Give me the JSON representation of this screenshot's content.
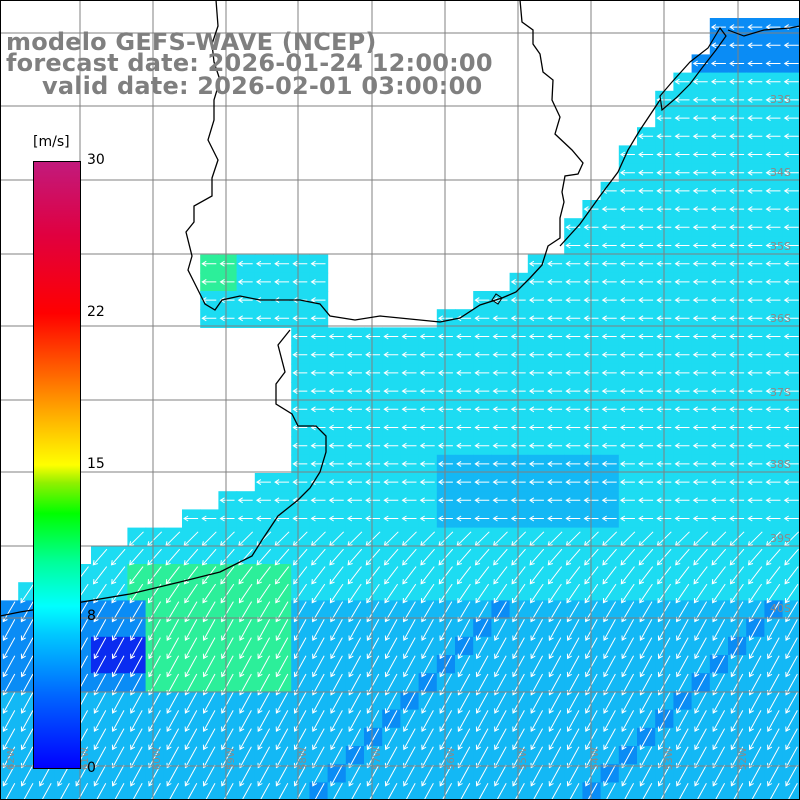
{
  "title": {
    "line1": "modelo GEFS-WAVE (NCEP)",
    "line2": "forecast date: 2026-01-24 12:00:00",
    "line3": "valid date: 2026-02-01 03:00:00"
  },
  "colorbar": {
    "unit": "[m/s]",
    "min": 0,
    "max": 30,
    "ticks": [
      "30",
      "22",
      "15",
      "8",
      "0"
    ]
  },
  "map": {
    "lat_labels": [
      "33S",
      "34S",
      "35S",
      "36S",
      "37S",
      "38S",
      "39S",
      "40S"
    ],
    "lon_labels": [
      "62W",
      "61W",
      "60W",
      "59W",
      "58W",
      "57W",
      "56W",
      "55W",
      "54W",
      "53W",
      "52W"
    ],
    "land_color": "#ffffff",
    "arrow_color": "#ffffff",
    "wind_direction": "from northeast",
    "field_levels": [
      "darkblue",
      "blue",
      "cyan",
      "aqua",
      "green"
    ]
  }
}
